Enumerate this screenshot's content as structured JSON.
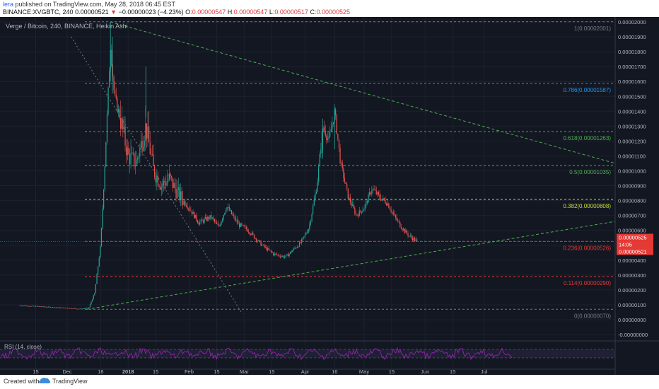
{
  "header": {
    "user": "lera",
    "published": "published on TradingView.com, May 28, 2018 06:45 EST",
    "symbol": "BINANCE:XVGBTC, 240",
    "last_price": "0.00000521",
    "arrow": "▼",
    "change": "−0.00000023 (−4.23%)",
    "open_label": "O:",
    "open_value": "0.00000547",
    "high_label": "H:",
    "high_value": "0.00000547",
    "low_label": "L:",
    "low_value": "0.00000517",
    "close_label": "C:",
    "close_value": "0.00000525"
  },
  "footer": {
    "created_with": "Created with",
    "brand": "TradingView"
  },
  "colors": {
    "background": "#131722",
    "candle_up": "#26a69a",
    "candle_down": "#ef5350",
    "trend_green": "#4caf50",
    "fib_blue": "#2196f3",
    "fib_green": "#4caf50",
    "fib_olive": "#cddc39",
    "fib_red": "#e53935",
    "fib_gray": "#787b86",
    "rsi_line": "#9c27b0",
    "price_tag": "#e53935"
  },
  "chart_data": {
    "type": "candlestick",
    "title": "Verge / Bitcoin, 240, BINANCE, Heikin Ashi",
    "x_ticks": [
      "15",
      "Dec",
      "18",
      "2018",
      "15",
      "Feb",
      "15",
      "Mar",
      "15",
      "Apr",
      "16",
      "May",
      "15",
      "Jun",
      "15",
      "Jul"
    ],
    "y_ticks": [
      "0.00002100",
      "0.00002000",
      "0.00001900",
      "0.00001800",
      "0.00001700",
      "0.00001600",
      "0.00001500",
      "0.00001400",
      "0.00001300",
      "0.00001200",
      "0.00001100",
      "0.00001000",
      "0.00000900",
      "0.00000800",
      "0.00000700",
      "0.00000600",
      "0.00000500",
      "0.00000400",
      "0.00000300",
      "0.00000200",
      "0.00000100",
      "0.00000000",
      "-0.00000000"
    ],
    "ylim": [
      0,
      2.1e-05
    ],
    "fib_levels": [
      {
        "label": "1(0.00002001)",
        "value": 2.001e-05
      },
      {
        "label": "0.786(0.00001587)",
        "value": 1.587e-05
      },
      {
        "label": "0.618(0.00001263)",
        "value": 1.263e-05
      },
      {
        "label": "0.5(0.00001035)",
        "value": 1.035e-05
      },
      {
        "label": "0.382(0.00000808)",
        "value": 8.08e-06
      },
      {
        "label": "0.236(0.00000526)",
        "value": 5.26e-06
      },
      {
        "label": "0.114(0.00000290)",
        "value": 2.9e-06
      },
      {
        "label": "0(0.00000070)",
        "value": 7e-07
      }
    ],
    "price_tags": [
      "0.00000525",
      "14:05",
      "0.00000521"
    ],
    "series_path": [
      [
        "Nov 7",
        9.5e-07
      ],
      [
        "Nov 15",
        9e-07
      ],
      [
        "Nov 25",
        8.2e-07
      ],
      [
        "Dec 1",
        7.8e-07
      ],
      [
        "Dec 8",
        7.2e-07
      ],
      [
        "Dec 12",
        8e-07
      ],
      [
        "Dec 15",
        1.8e-06
      ],
      [
        "Dec 18",
        5e-06
      ],
      [
        "Dec 20",
        1e-05
      ],
      [
        "Dec 23",
        1.85e-05
      ],
      [
        "Dec 25",
        1.5e-05
      ],
      [
        "Dec 28",
        1.35e-05
      ],
      [
        "Jan 1",
        1.1e-05
      ],
      [
        "Jan 5",
        1.05e-05
      ],
      [
        "Jan 10",
        1.3e-05
      ],
      [
        "Jan 14",
        1e-05
      ],
      [
        "Jan 18",
        9e-06
      ],
      [
        "Jan 22",
        9.5e-06
      ],
      [
        "Jan 26",
        8.5e-06
      ],
      [
        "Feb 1",
        7.5e-06
      ],
      [
        "Feb 6",
        6.5e-06
      ],
      [
        "Feb 12",
        6.9e-06
      ],
      [
        "Feb 16",
        6.2e-06
      ],
      [
        "Feb 20",
        7.6e-06
      ],
      [
        "Feb 26",
        6.4e-06
      ],
      [
        "Mar 3",
        6e-06
      ],
      [
        "Mar 10",
        5e-06
      ],
      [
        "Mar 16",
        4.4e-06
      ],
      [
        "Mar 22",
        4.2e-06
      ],
      [
        "Mar 26",
        4.7e-06
      ],
      [
        "Mar 30",
        5.2e-06
      ],
      [
        "Apr 3",
        6.2e-06
      ],
      [
        "Apr 7",
        9e-06
      ],
      [
        "Apr 10",
        1.3e-05
      ],
      [
        "Apr 13",
        1.2e-05
      ],
      [
        "Apr 16",
        1.4e-05
      ],
      [
        "Apr 19",
        1.05e-05
      ],
      [
        "Apr 23",
        8.2e-06
      ],
      [
        "Apr 27",
        7e-06
      ],
      [
        "May 1",
        7.5e-06
      ],
      [
        "May 5",
        8.8e-06
      ],
      [
        "May 9",
        8.2e-06
      ],
      [
        "May 13",
        7.8e-06
      ],
      [
        "May 16",
        7e-06
      ],
      [
        "May 20",
        6.2e-06
      ],
      [
        "May 24",
        5.6e-06
      ],
      [
        "May 28",
        5.25e-06
      ]
    ],
    "trendlines": [
      {
        "from": [
          "Dec 23",
          2e-05
        ],
        "to": [
          "Jul 8",
          1.05e-05
        ],
        "style": "dashed"
      },
      {
        "from": [
          "Dec 11",
          7e-07
        ],
        "to": [
          "Jul 8",
          6.6e-06
        ],
        "style": "dashed"
      }
    ],
    "rsi_label": "RSI (14, close)",
    "legend": "none",
    "grid": true
  }
}
